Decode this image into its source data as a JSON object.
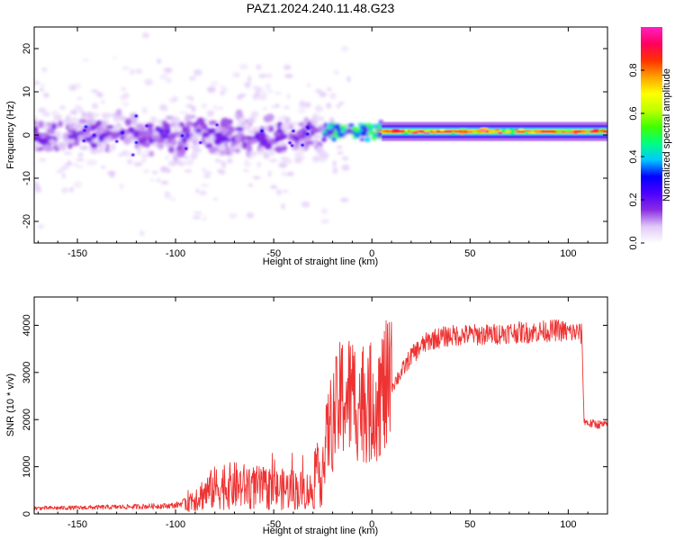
{
  "chart_data": [
    {
      "type": "heatmap",
      "title": "PAZ1.2024.240.11.48.G23",
      "xlabel": "Height of straight line (km)",
      "ylabel": "Frequency (Hz)",
      "xlim": [
        -172,
        120
      ],
      "ylim": [
        -25,
        25
      ],
      "xticks": [
        -150,
        -100,
        -50,
        0,
        50,
        100
      ],
      "yticks": [
        -20,
        -10,
        0,
        10,
        20
      ],
      "colorbar": {
        "label": "Normalized spectral amplitude",
        "range": [
          0,
          1
        ],
        "ticks": [
          0.0,
          0.2,
          0.4,
          0.6,
          0.8
        ],
        "colormap": [
          "#ffffff",
          "#e0c8f8",
          "#8a2be2",
          "#4b00ff",
          "#0000ff",
          "#00c8ff",
          "#00ff80",
          "#40ff00",
          "#c0ff00",
          "#ffff00",
          "#ffa000",
          "#ff3000",
          "#ff0060",
          "#ff20c0"
        ]
      },
      "summary": [
        {
          "x_range": [
            -172,
            -25
          ],
          "freq_center": 0,
          "freq_spread": 8,
          "amplitude": 0.15,
          "note": "scattered purple/blue blobs, faint lavender dots out to +/-22 Hz"
        },
        {
          "x_range": [
            -25,
            5
          ],
          "freq_center": 1,
          "freq_spread": 3,
          "amplitude": 0.45
        },
        {
          "x_range": [
            5,
            120
          ],
          "freq_center": 0.8,
          "freq_spread": 0.8,
          "amplitude": 0.95,
          "note": "narrow band, red core"
        }
      ]
    },
    {
      "type": "line",
      "title": "",
      "xlabel": "Height of straight line (km)",
      "ylabel": "SNR (10 * v/v)",
      "xlim": [
        -172,
        120
      ],
      "ylim": [
        0,
        4600
      ],
      "xticks": [
        -150,
        -100,
        -50,
        0,
        50,
        100
      ],
      "yticks": [
        0,
        1000,
        2000,
        3000,
        4000
      ],
      "color": "#ee3333",
      "series": [
        {
          "x": [
            -172,
            -150,
            -125,
            -105,
            -100,
            -95,
            -88,
            -80,
            -70,
            -60,
            -50,
            -40,
            -30,
            -26,
            -22,
            -18,
            -15,
            -10,
            -5,
            0,
            5,
            10,
            15,
            20,
            25,
            30,
            40,
            50,
            60,
            70,
            80,
            90,
            95,
            100,
            105,
            107,
            108,
            110,
            115,
            120
          ],
          "y": [
            120,
            130,
            150,
            170,
            180,
            250,
            380,
            550,
            600,
            560,
            520,
            520,
            480,
            900,
            1800,
            2200,
            2500,
            2500,
            2350,
            2350,
            2600,
            2700,
            3000,
            3350,
            3550,
            3700,
            3780,
            3800,
            3800,
            3850,
            3850,
            3880,
            3900,
            3850,
            3850,
            3800,
            2000,
            1920,
            1900,
            1880
          ]
        }
      ]
    }
  ],
  "colors": {
    "accent": "#ee3333"
  }
}
